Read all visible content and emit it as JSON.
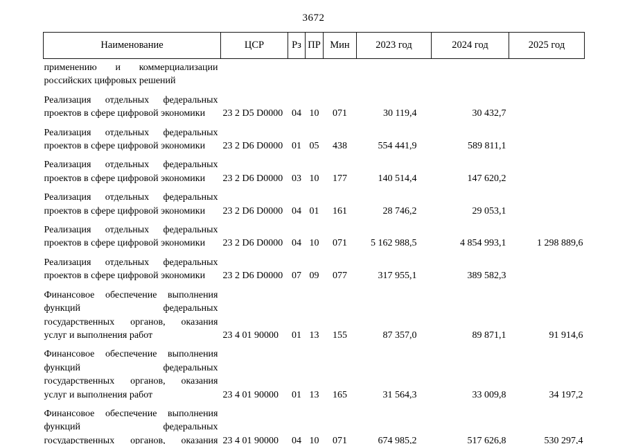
{
  "page": {
    "number": "3672"
  },
  "table": {
    "headers": {
      "name": "Наименование",
      "csr": "ЦСР",
      "rz": "Рз",
      "pr": "ПР",
      "min": "Мин",
      "y2023": "2023 год",
      "y2024": "2024 год",
      "y2025": "2025 год"
    },
    "continuation": {
      "name_lines": [
        "применению и коммерциализации",
        "российских цифровых решений"
      ]
    },
    "rows": [
      {
        "name_lines": [
          "Реализация отдельных федеральных",
          "проектов в сфере цифровой экономики"
        ],
        "csr": "23 2 D5 D0000",
        "rz": "04",
        "pr": "10",
        "min": "071",
        "y2023": "30 119,4",
        "y2024": "30 432,7",
        "y2025": ""
      },
      {
        "name_lines": [
          "Реализация отдельных федеральных",
          "проектов в сфере цифровой экономики"
        ],
        "csr": "23 2 D6 D0000",
        "rz": "01",
        "pr": "05",
        "min": "438",
        "y2023": "554 441,9",
        "y2024": "589 811,1",
        "y2025": ""
      },
      {
        "name_lines": [
          "Реализация отдельных федеральных",
          "проектов в сфере цифровой экономики"
        ],
        "csr": "23 2 D6 D0000",
        "rz": "03",
        "pr": "10",
        "min": "177",
        "y2023": "140 514,4",
        "y2024": "147 620,2",
        "y2025": ""
      },
      {
        "name_lines": [
          "Реализация отдельных федеральных",
          "проектов в сфере цифровой экономики"
        ],
        "csr": "23 2 D6 D0000",
        "rz": "04",
        "pr": "01",
        "min": "161",
        "y2023": "28 746,2",
        "y2024": "29 053,1",
        "y2025": ""
      },
      {
        "name_lines": [
          "Реализация отдельных федеральных",
          "проектов в сфере цифровой экономики"
        ],
        "csr": "23 2 D6 D0000",
        "rz": "04",
        "pr": "10",
        "min": "071",
        "y2023": "5 162 988,5",
        "y2024": "4 854 993,1",
        "y2025": "1 298 889,6"
      },
      {
        "name_lines": [
          "Реализация отдельных федеральных",
          "проектов в сфере цифровой экономики"
        ],
        "csr": "23 2 D6 D0000",
        "rz": "07",
        "pr": "09",
        "min": "077",
        "y2023": "317 955,1",
        "y2024": "389 582,3",
        "y2025": ""
      },
      {
        "name_lines": [
          "Финансовое обеспечение выполнения",
          "функций федеральных",
          "государственных органов, оказания",
          "услуг и выполнения работ"
        ],
        "csr": "23 4 01 90000",
        "rz": "01",
        "pr": "13",
        "min": "155",
        "y2023": "87 357,0",
        "y2024": "89 871,1",
        "y2025": "91 914,6"
      },
      {
        "name_lines": [
          "Финансовое обеспечение выполнения",
          "функций федеральных",
          "государственных органов, оказания",
          "услуг и выполнения работ"
        ],
        "csr": "23 4 01 90000",
        "rz": "01",
        "pr": "13",
        "min": "165",
        "y2023": "31 564,3",
        "y2024": "33 009,8",
        "y2025": "34 197,2"
      },
      {
        "name_lines": [
          "Финансовое обеспечение выполнения",
          "функций федеральных",
          "государственных органов, оказания"
        ],
        "csr": "23 4 01 90000",
        "rz": "04",
        "pr": "10",
        "min": "071",
        "y2023": "674 985,2",
        "y2024": "517 626,8",
        "y2025": "530 297,4"
      }
    ]
  }
}
